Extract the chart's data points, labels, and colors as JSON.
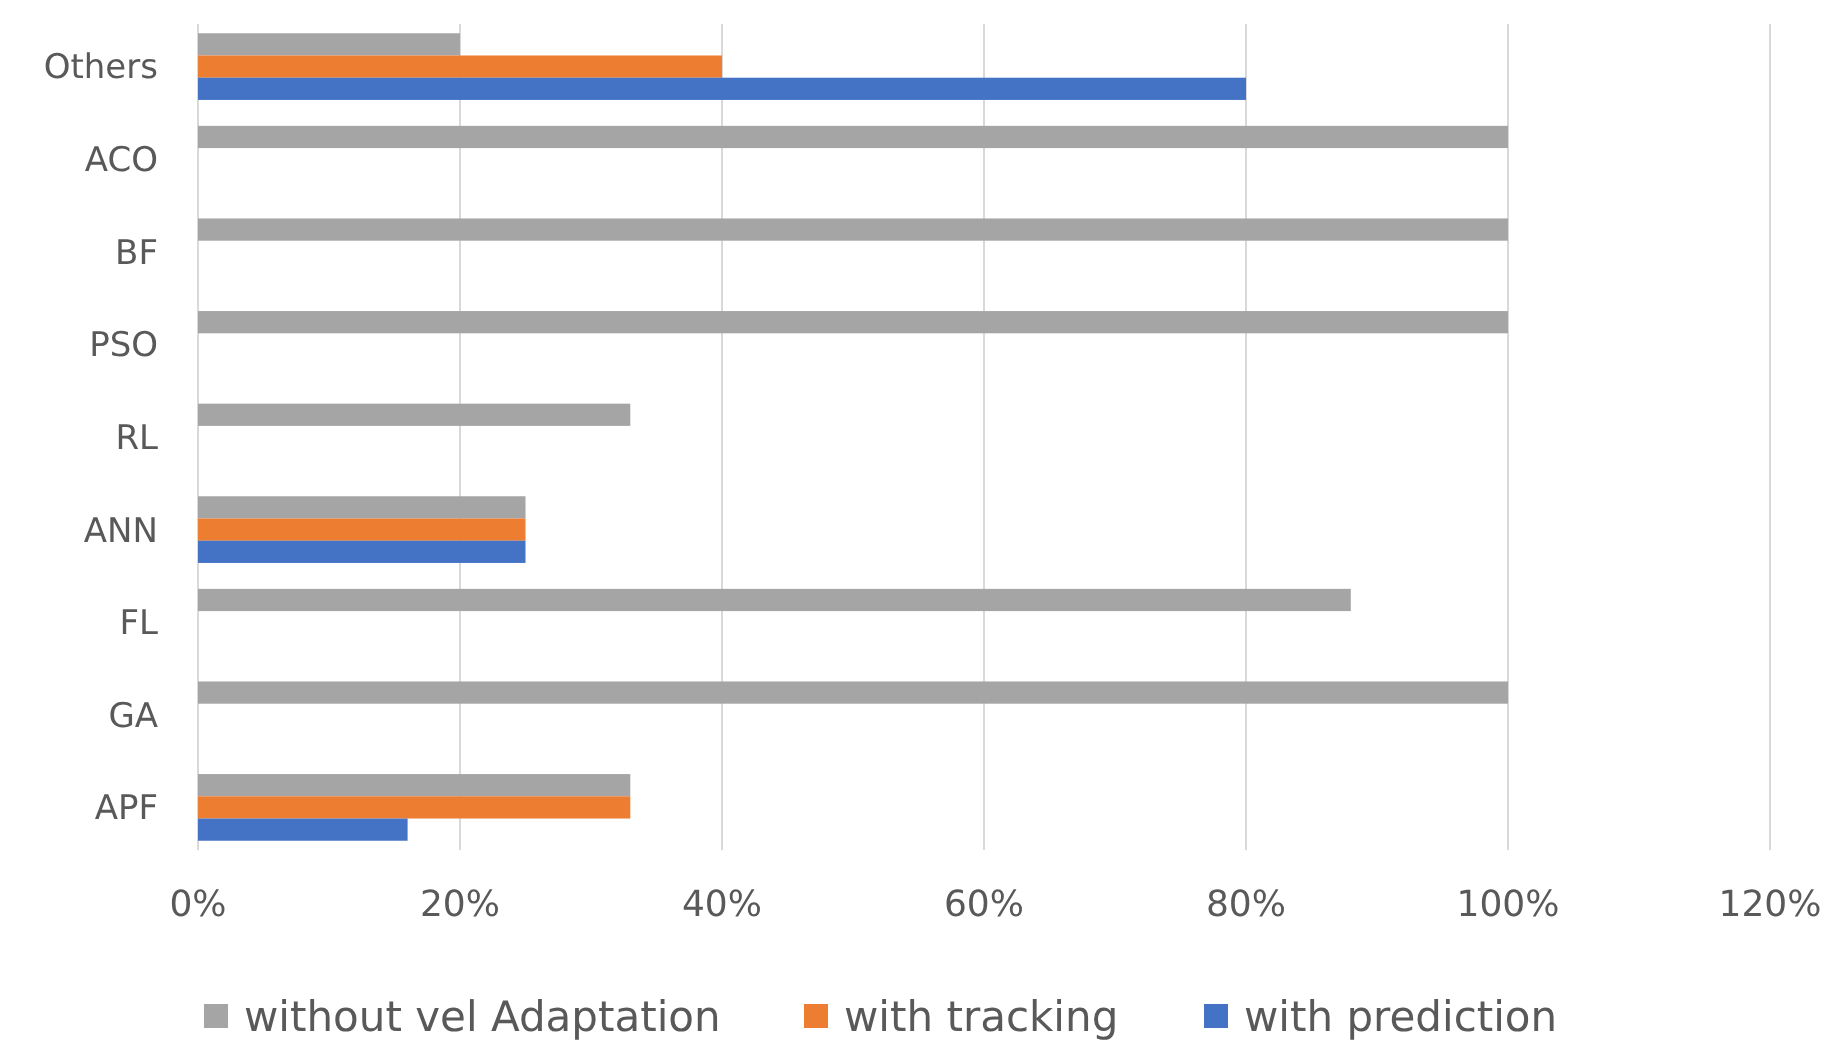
{
  "chart_data": {
    "type": "bar",
    "orientation": "horizontal",
    "categories": [
      "Others",
      "ACO",
      "BF",
      "PSO",
      "RL",
      "ANN",
      "FL",
      "GA",
      "APF"
    ],
    "series": [
      {
        "name": "without vel Adaptation",
        "color": "#a5a5a5",
        "values": [
          20,
          100,
          100,
          100,
          33,
          25,
          88,
          100,
          33
        ]
      },
      {
        "name": "with tracking",
        "color": "#ed7d31",
        "values": [
          40,
          null,
          null,
          null,
          null,
          25,
          null,
          null,
          33
        ]
      },
      {
        "name": "with prediction",
        "color": "#4472c4",
        "values": [
          80,
          null,
          null,
          null,
          null,
          25,
          null,
          null,
          16
        ]
      }
    ],
    "xlim": [
      0,
      120
    ],
    "xticks": [
      {
        "value": 0,
        "label": "0%"
      },
      {
        "value": 20,
        "label": "20%"
      },
      {
        "value": 40,
        "label": "40%"
      },
      {
        "value": 60,
        "label": "60%"
      },
      {
        "value": 80,
        "label": "80%"
      },
      {
        "value": 100,
        "label": "100%"
      },
      {
        "value": 120,
        "label": "120%"
      }
    ],
    "grid": "x",
    "legend": "bottom"
  }
}
